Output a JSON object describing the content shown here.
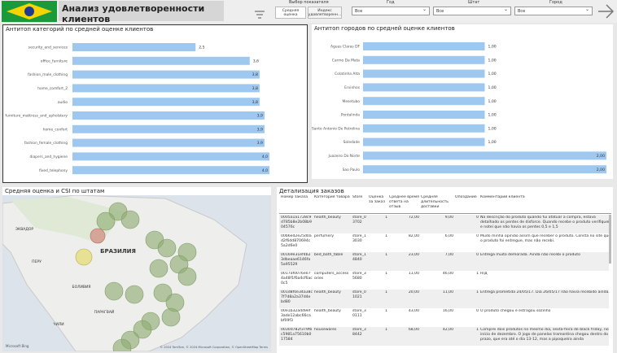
{
  "header": {
    "title": "Анализ удовлетворенности клиентов",
    "metric_label": "Выбор показателя",
    "metric_buttons": [
      "Средняя оценка",
      "Индекс удовлетворенн..."
    ],
    "filters": [
      {
        "label": "Год",
        "value": "Все"
      },
      {
        "label": "Штат",
        "value": "Все"
      },
      {
        "label": "Город",
        "value": "Все"
      }
    ]
  },
  "chart_data": [
    {
      "type": "bar",
      "orientation": "horizontal",
      "title": "Антитоп категорий по средней оценке клиентов",
      "color": "#9ec8f0",
      "categories": [
        "security_and_services",
        "office_furniture",
        "fashion_male_clothing",
        "home_comfort_2",
        "audio",
        "furniture_mattress_and_upholstery",
        "home_confort",
        "fashion_female_clothing",
        "diapers_and_hygiene",
        "fixed_telephony"
      ],
      "values": [
        2.5,
        3.6,
        3.8,
        3.8,
        3.8,
        3.9,
        3.9,
        3.9,
        4.0,
        4.0
      ],
      "value_labels": [
        "2,5",
        "3,6",
        "3,8",
        "3,8",
        "3,8",
        "3,9",
        "3,9",
        "3,9",
        "4,0",
        "4,0"
      ]
    },
    {
      "type": "bar",
      "orientation": "horizontal",
      "title": "Антитоп городов по средней оценке клиентов",
      "color": "#9ec8f0",
      "categories": [
        "Aguas Claras DF",
        "Carmo Da Mata",
        "Colatinha Alta",
        "Ervinhos",
        "Mesetubo",
        "Pontalinda",
        "Santo Antonio De Petrolina",
        "Soledade",
        "Juazeiro Do Norte",
        "Sao Paulo"
      ],
      "values": [
        1.0,
        1.0,
        1.0,
        1.0,
        1.0,
        1.0,
        1.0,
        1.0,
        2.0,
        2.0
      ],
      "value_labels": [
        "1,00",
        "1,00",
        "1,00",
        "1,00",
        "1,00",
        "1,00",
        "1,00",
        "1,00",
        "2,00",
        "2,00"
      ]
    }
  ],
  "map": {
    "title": "Средняя оценка и CSI по штатам",
    "labels": [
      "ЭКВАДОР",
      "ПЕРУ",
      "БРАЗИЛИЯ",
      "БОЛИВИЯ",
      "ПАРАГВАЙ",
      "ЧИЛИ"
    ],
    "logo": "Microsoft Bing",
    "attribution": "© 2024 TomTom, © 2024 Microsoft Corporation, © OpenStreetMap  Terms"
  },
  "table": {
    "title": "Детализация заказов",
    "columns": [
      "Номер заказа",
      "Категория товара",
      "Store",
      "Оценка за заказ",
      "Среднее время ответа на отзыв",
      "Средняя длительность доставки",
      "Опоздание",
      "Комментарий клиента"
    ],
    "rows": [
      [
        "0005a1a1728c9d785b8e2b08b904576c",
        "health_beauty",
        "store_03702",
        "1",
        "72,00",
        "9,00",
        "0",
        "Na descrição do produto quando fui afatuar a compra, estava detalhado os pentes de disforce. Quando recebe o produto verifiquei e notei que não havia os pentes 0,5 e 1,5"
      ],
      [
        "00b6ed2e25d0ad2f6dd870694c5a2d6e0",
        "perfumery",
        "store_13030",
        "1",
        "82,00",
        "6,00",
        "0",
        "Mudo minha opinião assim que receber o produto. Consta no site que o produto foi entregue, mas não recebi."
      ],
      [
        "00169e31ef4b23dbeaae6146fa5a95529",
        "bed_bath_table",
        "store_14840",
        "1",
        "23,00",
        "7,00",
        "0",
        "Entrega muito demorada. Ainda não recebi o produto"
      ],
      [
        "0017af0076e074a48f1f6a4cf6ac0c5",
        "computers_accessories",
        "store_35680",
        "1",
        "11,00",
        "46,00",
        "1",
        "Н/Д"
      ],
      [
        "001d8f0e34a38c7f7d8a2a37d4ebd80",
        "health_beauty",
        "store_01021",
        "1",
        "20,00",
        "11,00",
        "1",
        "Entrega prometida 24/05/17. Dia 26/05/17 não havia recebido ainda."
      ],
      [
        "00e1b32add9ef3ade12abc66cabf09f3",
        "health_beauty",
        "store_30111",
        "1",
        "43,00",
        "16,00",
        "0",
        "O produto chegou e estragou sozinho"
      ],
      [
        "0030d782f379fbc5981a75610b017584",
        "housewares",
        "store_38442",
        "1",
        "68,00",
        "42,00",
        "1",
        "Comprei dois produtos no mesmo dia, sexta-feira de black friday, no início de dezembro. O jogo de panelas tramontina chegou dentro do prazo, que era até o dia 13-12, mas a pipoqueira ainda"
      ]
    ]
  }
}
